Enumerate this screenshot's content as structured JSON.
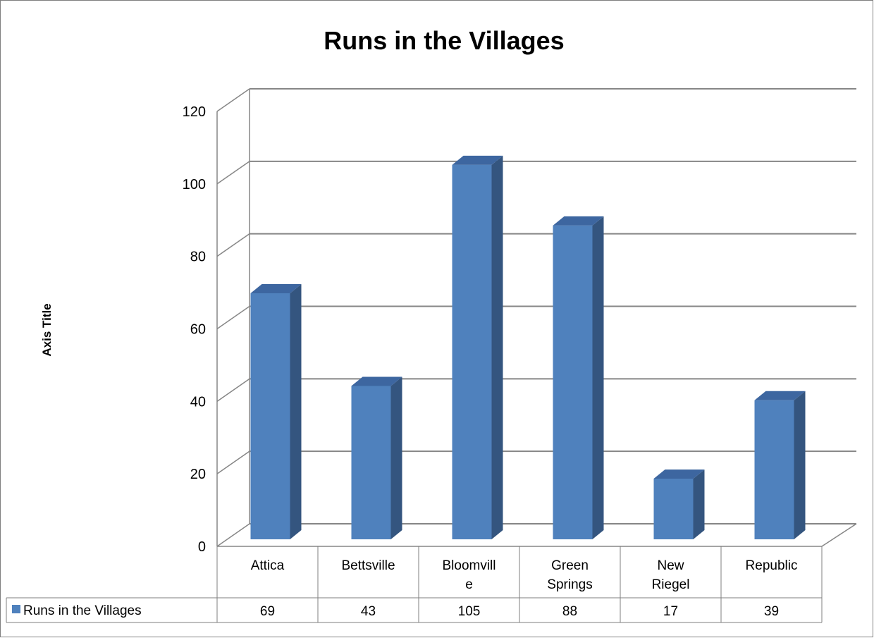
{
  "chart_data": {
    "type": "bar",
    "title": "Runs in the Villages",
    "ylabel": "Axis Title",
    "xlabel": "",
    "categories": [
      "Attica",
      "Bettsville",
      "Bloomville",
      "Green Springs",
      "New Riegel",
      "Republic"
    ],
    "category_label_lines": [
      [
        "Attica"
      ],
      [
        "Bettsville"
      ],
      [
        "Bloomvill",
        "e"
      ],
      [
        "Green",
        "Springs"
      ],
      [
        "New",
        "Riegel"
      ],
      [
        "Republic"
      ]
    ],
    "series": [
      {
        "name": "Runs in the Villages",
        "values": [
          69,
          43,
          105,
          88,
          17,
          39
        ],
        "color": "#4f81bd"
      }
    ],
    "ylim": [
      0,
      120
    ],
    "yticks": [
      "0",
      "20",
      "40",
      "60",
      "80",
      "100",
      "120"
    ],
    "grid": true,
    "data_table": true,
    "style": "3d-column",
    "colors": {
      "bar_front": "#4f81bd",
      "bar_side": "#34557f",
      "bar_top": "#3d66a0",
      "grid": "#868686",
      "border": "#7f7f7f"
    }
  }
}
